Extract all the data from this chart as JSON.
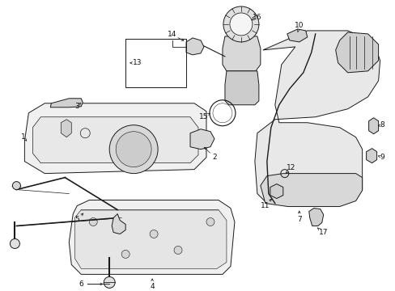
{
  "background_color": "#ffffff",
  "line_color": "#1a1a1a",
  "fill_light": "#f0f0f0",
  "fill_mid": "#e0e0e0",
  "fill_dark": "#cccccc",
  "figsize": [
    4.89,
    3.6
  ],
  "dpi": 100
}
